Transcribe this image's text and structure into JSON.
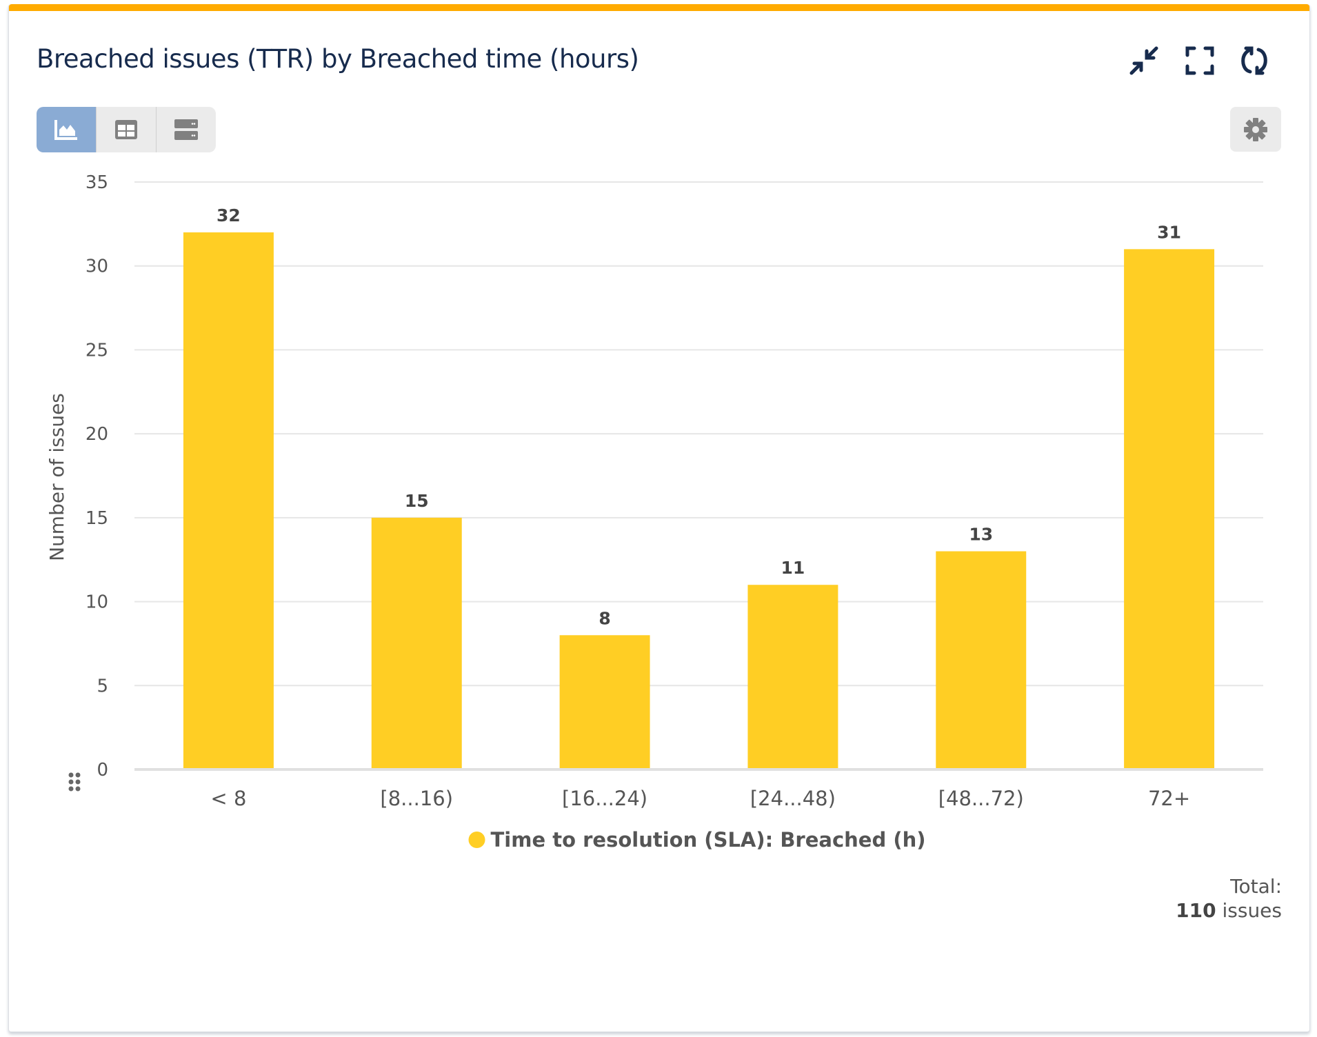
{
  "header": {
    "title": "Breached issues (TTR) by Breached time (hours)",
    "icons": [
      "collapse-icon",
      "fullscreen-icon",
      "refresh-icon"
    ]
  },
  "view_toggle": {
    "options": [
      "chart-view",
      "table-view",
      "list-view"
    ],
    "active": "chart-view",
    "active_color": "#8AABD4"
  },
  "settings_icon": "gear-icon",
  "footer": {
    "total_label": "Total:",
    "total_value": "110",
    "total_unit": "issues"
  },
  "chart_data": {
    "type": "bar",
    "title": "",
    "xlabel": "",
    "ylabel": "Number of issues",
    "categories": [
      "< 8",
      "[8...16)",
      "[16...24)",
      "[24...48)",
      "[48...72)",
      "72+"
    ],
    "series": [
      {
        "name": "Time to resolution (SLA): Breached (h)",
        "values": [
          32,
          15,
          8,
          11,
          13,
          31
        ],
        "color": "#FFCE24"
      }
    ],
    "ylim": [
      0,
      35
    ],
    "yticks": [
      0,
      5,
      10,
      15,
      20,
      25,
      30,
      35
    ],
    "grid": true,
    "data_labels": true,
    "legend": "bottom-center"
  }
}
